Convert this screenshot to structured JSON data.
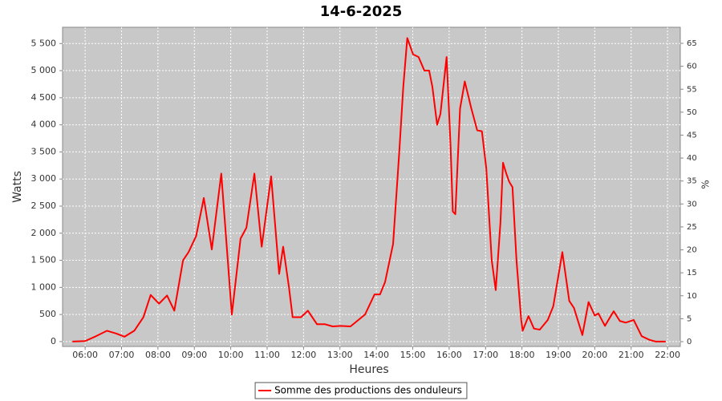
{
  "chart_data": {
    "type": "line",
    "title": "14-6-2025",
    "xlabel": "Heures",
    "ylabel": "Watts",
    "y2label": "%",
    "x": [
      5.65,
      6.0,
      6.3,
      6.6,
      6.85,
      7.08,
      7.35,
      7.6,
      7.8,
      8.03,
      8.25,
      8.45,
      8.69,
      8.84,
      9.05,
      9.26,
      9.48,
      9.74,
      10.03,
      10.27,
      10.43,
      10.65,
      10.85,
      11.11,
      11.33,
      11.44,
      11.6,
      11.7,
      11.93,
      12.12,
      12.37,
      12.59,
      12.8,
      13.02,
      13.29,
      13.69,
      13.95,
      14.1,
      14.24,
      14.46,
      14.63,
      14.74,
      14.85,
      15.01,
      15.16,
      15.32,
      15.45,
      15.54,
      15.67,
      15.76,
      15.93,
      16.04,
      16.1,
      16.17,
      16.3,
      16.43,
      16.61,
      16.77,
      16.9,
      17.02,
      17.17,
      17.28,
      17.41,
      17.48,
      17.57,
      17.65,
      17.74,
      17.85,
      17.98,
      18.02,
      18.18,
      18.33,
      18.49,
      18.71,
      18.86,
      19.11,
      19.3,
      19.43,
      19.66,
      19.83,
      20.0,
      20.1,
      20.28,
      20.52,
      20.69,
      20.85,
      21.07,
      21.29,
      21.51,
      21.68,
      21.95
    ],
    "series": [
      {
        "name": "Somme des productions des onduleurs",
        "color": "#ff0000",
        "values": [
          0,
          10,
          100,
          200,
          150,
          90,
          200,
          450,
          860,
          700,
          850,
          570,
          1500,
          1650,
          1950,
          2650,
          1700,
          3100,
          500,
          1900,
          2100,
          3100,
          1750,
          3050,
          1250,
          1750,
          1000,
          450,
          450,
          570,
          320,
          320,
          280,
          290,
          280,
          500,
          870,
          870,
          1100,
          1800,
          3500,
          4700,
          5600,
          5300,
          5250,
          5000,
          5000,
          4700,
          4000,
          4200,
          5250,
          3600,
          2400,
          2350,
          4300,
          4800,
          4300,
          3900,
          3880,
          3200,
          1500,
          950,
          2200,
          3300,
          3100,
          2950,
          2850,
          1500,
          400,
          200,
          470,
          240,
          220,
          400,
          650,
          1650,
          750,
          620,
          120,
          730,
          480,
          520,
          290,
          560,
          380,
          350,
          400,
          100,
          30,
          0,
          0
        ]
      }
    ],
    "xlim": [
      5.38,
      22.35
    ],
    "xticks": [
      {
        "value": 6,
        "label": "06:00"
      },
      {
        "value": 7,
        "label": "07:00"
      },
      {
        "value": 8,
        "label": "08:00"
      },
      {
        "value": 9,
        "label": "09:00"
      },
      {
        "value": 10,
        "label": "10:00"
      },
      {
        "value": 11,
        "label": "11:00"
      },
      {
        "value": 12,
        "label": "12:00"
      },
      {
        "value": 13,
        "label": "13:00"
      },
      {
        "value": 14,
        "label": "14:00"
      },
      {
        "value": 15,
        "label": "15:00"
      },
      {
        "value": 16,
        "label": "16:00"
      },
      {
        "value": 17,
        "label": "17:00"
      },
      {
        "value": 18,
        "label": "18:00"
      },
      {
        "value": 19,
        "label": "19:00"
      },
      {
        "value": 20,
        "label": "20:00"
      },
      {
        "value": 21,
        "label": "21:00"
      },
      {
        "value": 22,
        "label": "22:00"
      }
    ],
    "ylim": [
      -90,
      5800
    ],
    "yticks": [
      0,
      500,
      {
        "value": 1000,
        "label": "1 000"
      },
      {
        "value": 1500,
        "label": "1 500"
      },
      {
        "value": 2000,
        "label": "2 000"
      },
      {
        "value": 2500,
        "label": "2 500"
      },
      {
        "value": 3000,
        "label": "3 000"
      },
      {
        "value": 3500,
        "label": "3 500"
      },
      {
        "value": 4000,
        "label": "4 000"
      },
      {
        "value": 4500,
        "label": "4 500"
      },
      {
        "value": 5000,
        "label": "5 000"
      },
      {
        "value": 5500,
        "label": "5 500"
      }
    ],
    "y2lim": [
      -1.05,
      68.5
    ],
    "y2ticks": [
      0,
      5,
      10,
      15,
      20,
      25,
      30,
      35,
      40,
      45,
      50,
      55,
      60,
      65
    ],
    "grid": true,
    "legend": "bottom"
  }
}
